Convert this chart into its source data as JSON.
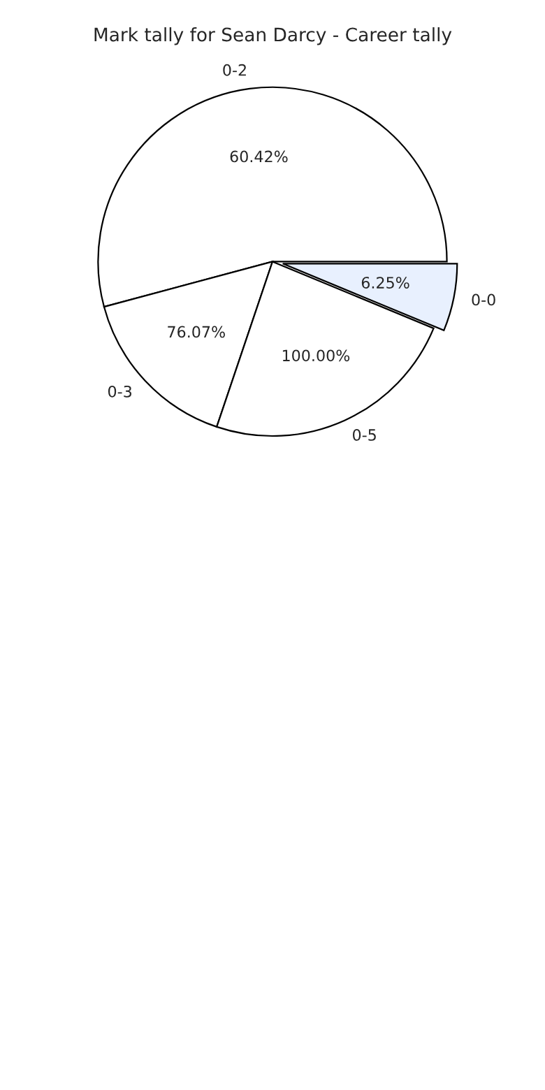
{
  "chart_data": {
    "type": "pie",
    "title": "Mark tally for Sean Darcy - Career tally",
    "categories": [
      "0-0",
      "0-2",
      "0-3",
      "0-5"
    ],
    "values": [
      6.25,
      54.17,
      15.65,
      23.93
    ],
    "colors": [
      "#e8f0fe",
      "#ffffff",
      "#ffffff",
      "#ffffff"
    ],
    "annotations": [
      "6.25%",
      "60.42%",
      "76.07%",
      "100.00%"
    ]
  }
}
